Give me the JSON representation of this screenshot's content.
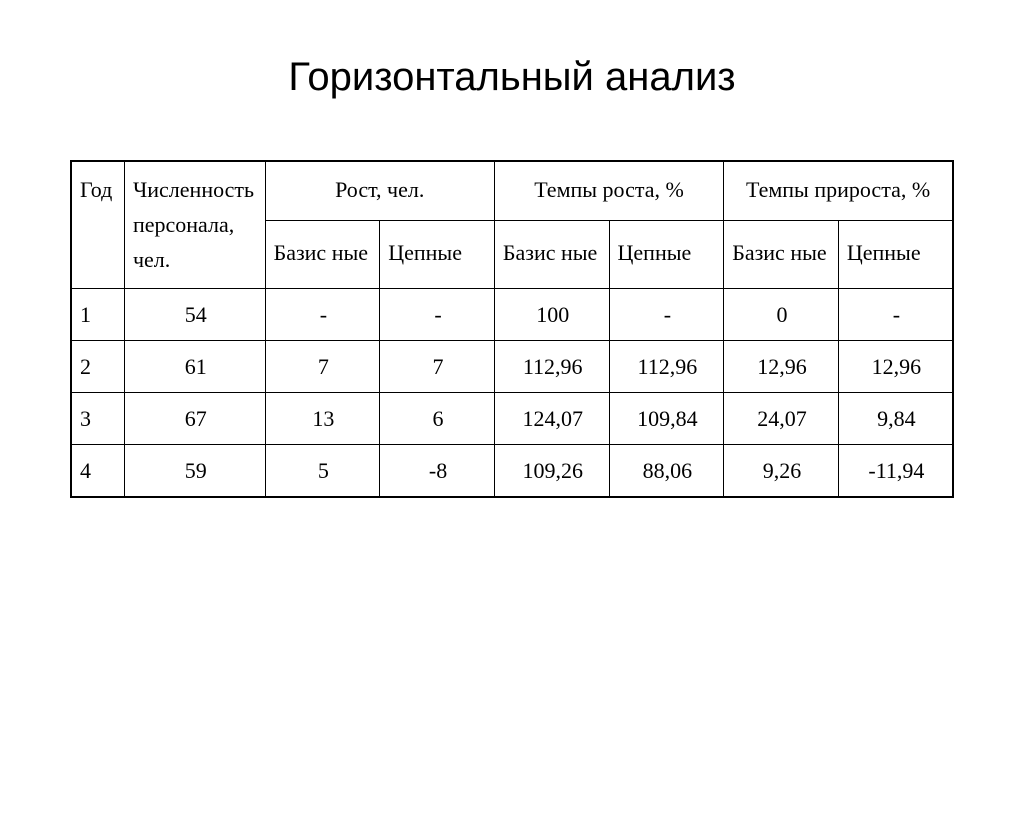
{
  "title": "Горизонтальный анализ",
  "table": {
    "type": "table",
    "header_groups": {
      "year": "Год",
      "count": "Численность персонала, чел.",
      "growth": "Рост, чел.",
      "growth_rate": "Темпы роста, %",
      "increment_rate": "Темпы прироста, %"
    },
    "sub_headers": {
      "base": "Базис ные",
      "chain": "Цепные"
    },
    "rows": [
      {
        "year": "1",
        "count": "54",
        "growth_base": "-",
        "growth_chain": "-",
        "rate_base": "100",
        "rate_chain": "-",
        "inc_base": "0",
        "inc_chain": "-"
      },
      {
        "year": "2",
        "count": "61",
        "growth_base": "7",
        "growth_chain": "7",
        "rate_base": "112,96",
        "rate_chain": "112,96",
        "inc_base": "12,96",
        "inc_chain": "12,96"
      },
      {
        "year": "3",
        "count": "67",
        "growth_base": "13",
        "growth_chain": "6",
        "rate_base": "124,07",
        "rate_chain": "109,84",
        "inc_base": "24,07",
        "inc_chain": "9,84"
      },
      {
        "year": "4",
        "count": "59",
        "growth_base": "5",
        "growth_chain": "-8",
        "rate_base": "109,26",
        "rate_chain": "88,06",
        "inc_base": "9,26",
        "inc_chain": "-11,94"
      }
    ],
    "border_color": "#000000",
    "background_color": "#ffffff",
    "text_color": "#000000",
    "header_fontsize": 22,
    "cell_fontsize": 22,
    "title_fontsize": 40
  }
}
